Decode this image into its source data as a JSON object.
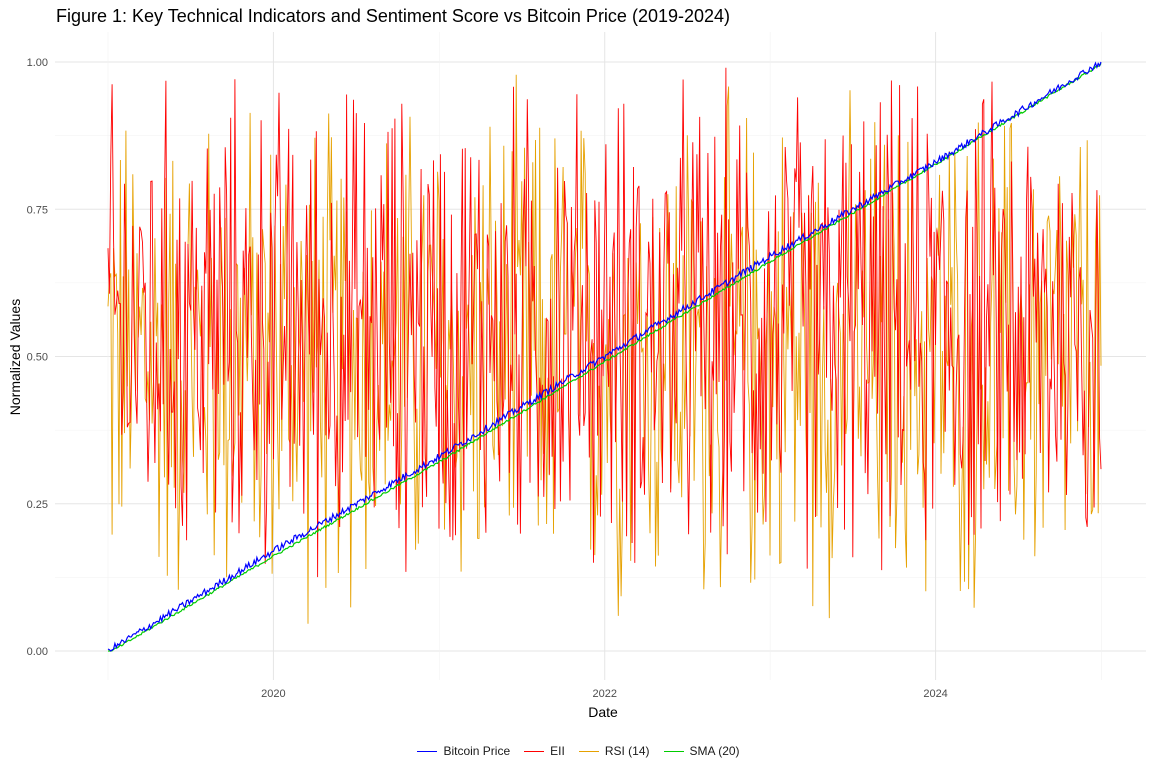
{
  "page": {
    "title": "Figure 1: Key Technical Indicators and Sentiment Score vs Bitcoin Price (2019-2024)"
  },
  "chart_data": {
    "type": "line",
    "title": "Figure 1: Key Technical Indicators and Sentiment Score vs Bitcoin Price (2019-2024)",
    "xlabel": "Date",
    "ylabel": "Normalized Values",
    "xlim": [
      "2019-01-01",
      "2024-12-31"
    ],
    "ylim": [
      0,
      1
    ],
    "x_ticks": [
      "2020",
      "2022",
      "2024"
    ],
    "y_ticks": [
      "0.00",
      "0.25",
      "0.50",
      "0.75",
      "1.00"
    ],
    "grid": true,
    "legend_position": "bottom",
    "series": [
      {
        "name": "Bitcoin Price",
        "color": "#0000ff",
        "description_trend": "linear",
        "x": [
          "2019-01-01",
          "2020-01-01",
          "2021-01-01",
          "2022-01-01",
          "2023-01-01",
          "2024-01-01",
          "2024-12-31"
        ],
        "values": [
          0.0,
          0.17,
          0.33,
          0.5,
          0.67,
          0.83,
          1.0
        ]
      },
      {
        "name": "EII",
        "color": "#ff0000",
        "description_trend": "noisy",
        "x": [
          "2019-01-01",
          "2024-12-31"
        ],
        "values": [
          0.55,
          0.55
        ],
        "range": [
          0.05,
          1.0
        ]
      },
      {
        "name": "RSI (14)",
        "color": "#e6a100",
        "description_trend": "noisy",
        "x": [
          "2019-01-01",
          "2024-12-31"
        ],
        "values": [
          0.5,
          0.5
        ],
        "range": [
          0.0,
          1.0
        ]
      },
      {
        "name": "SMA (20)",
        "color": "#00cc00",
        "description_trend": "linear",
        "x": [
          "2019-01-01",
          "2020-01-01",
          "2021-01-01",
          "2022-01-01",
          "2023-01-01",
          "2024-01-01",
          "2024-12-31"
        ],
        "values": [
          0.0,
          0.165,
          0.325,
          0.495,
          0.665,
          0.83,
          1.0
        ]
      }
    ]
  }
}
